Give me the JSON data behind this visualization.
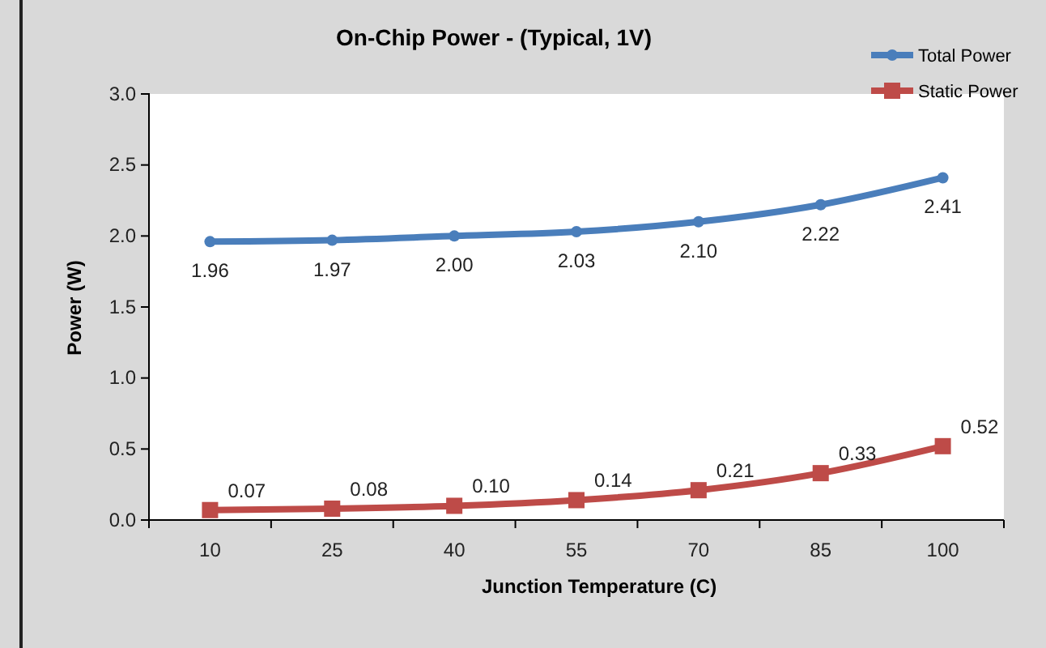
{
  "chart_data": {
    "type": "line",
    "title": "On-Chip Power - (Typical, 1V)",
    "xlabel": "Junction Temperature  (C)",
    "ylabel": "Power (W)",
    "categories": [
      "10",
      "25",
      "40",
      "55",
      "70",
      "85",
      "100"
    ],
    "series": [
      {
        "name": "Total Power",
        "color": "#4a7ebb",
        "marker": "circle",
        "values": [
          1.96,
          1.97,
          2.0,
          2.03,
          2.1,
          2.22,
          2.41
        ],
        "value_labels": [
          "1.96",
          "1.97",
          "2.00",
          "2.03",
          "2.10",
          "2.22",
          "2.41"
        ]
      },
      {
        "name": "Static Power",
        "color": "#be4b48",
        "marker": "square",
        "values": [
          0.07,
          0.08,
          0.1,
          0.14,
          0.21,
          0.33,
          0.52
        ],
        "value_labels": [
          "0.07",
          "0.08",
          "0.10",
          "0.14",
          "0.21",
          "0.33",
          "0.52"
        ]
      }
    ],
    "ylim": [
      0,
      3
    ],
    "yticks": [
      {
        "value": 0,
        "label": "0.0"
      },
      {
        "value": 0.5,
        "label": "0.5"
      },
      {
        "value": 1,
        "label": "1.0"
      },
      {
        "value": 1.5,
        "label": "1.5"
      },
      {
        "value": 2,
        "label": "2.0"
      },
      {
        "value": 2.5,
        "label": "2.5"
      },
      {
        "value": 3,
        "label": "3.0"
      }
    ],
    "grid": false,
    "legend": "top right"
  }
}
